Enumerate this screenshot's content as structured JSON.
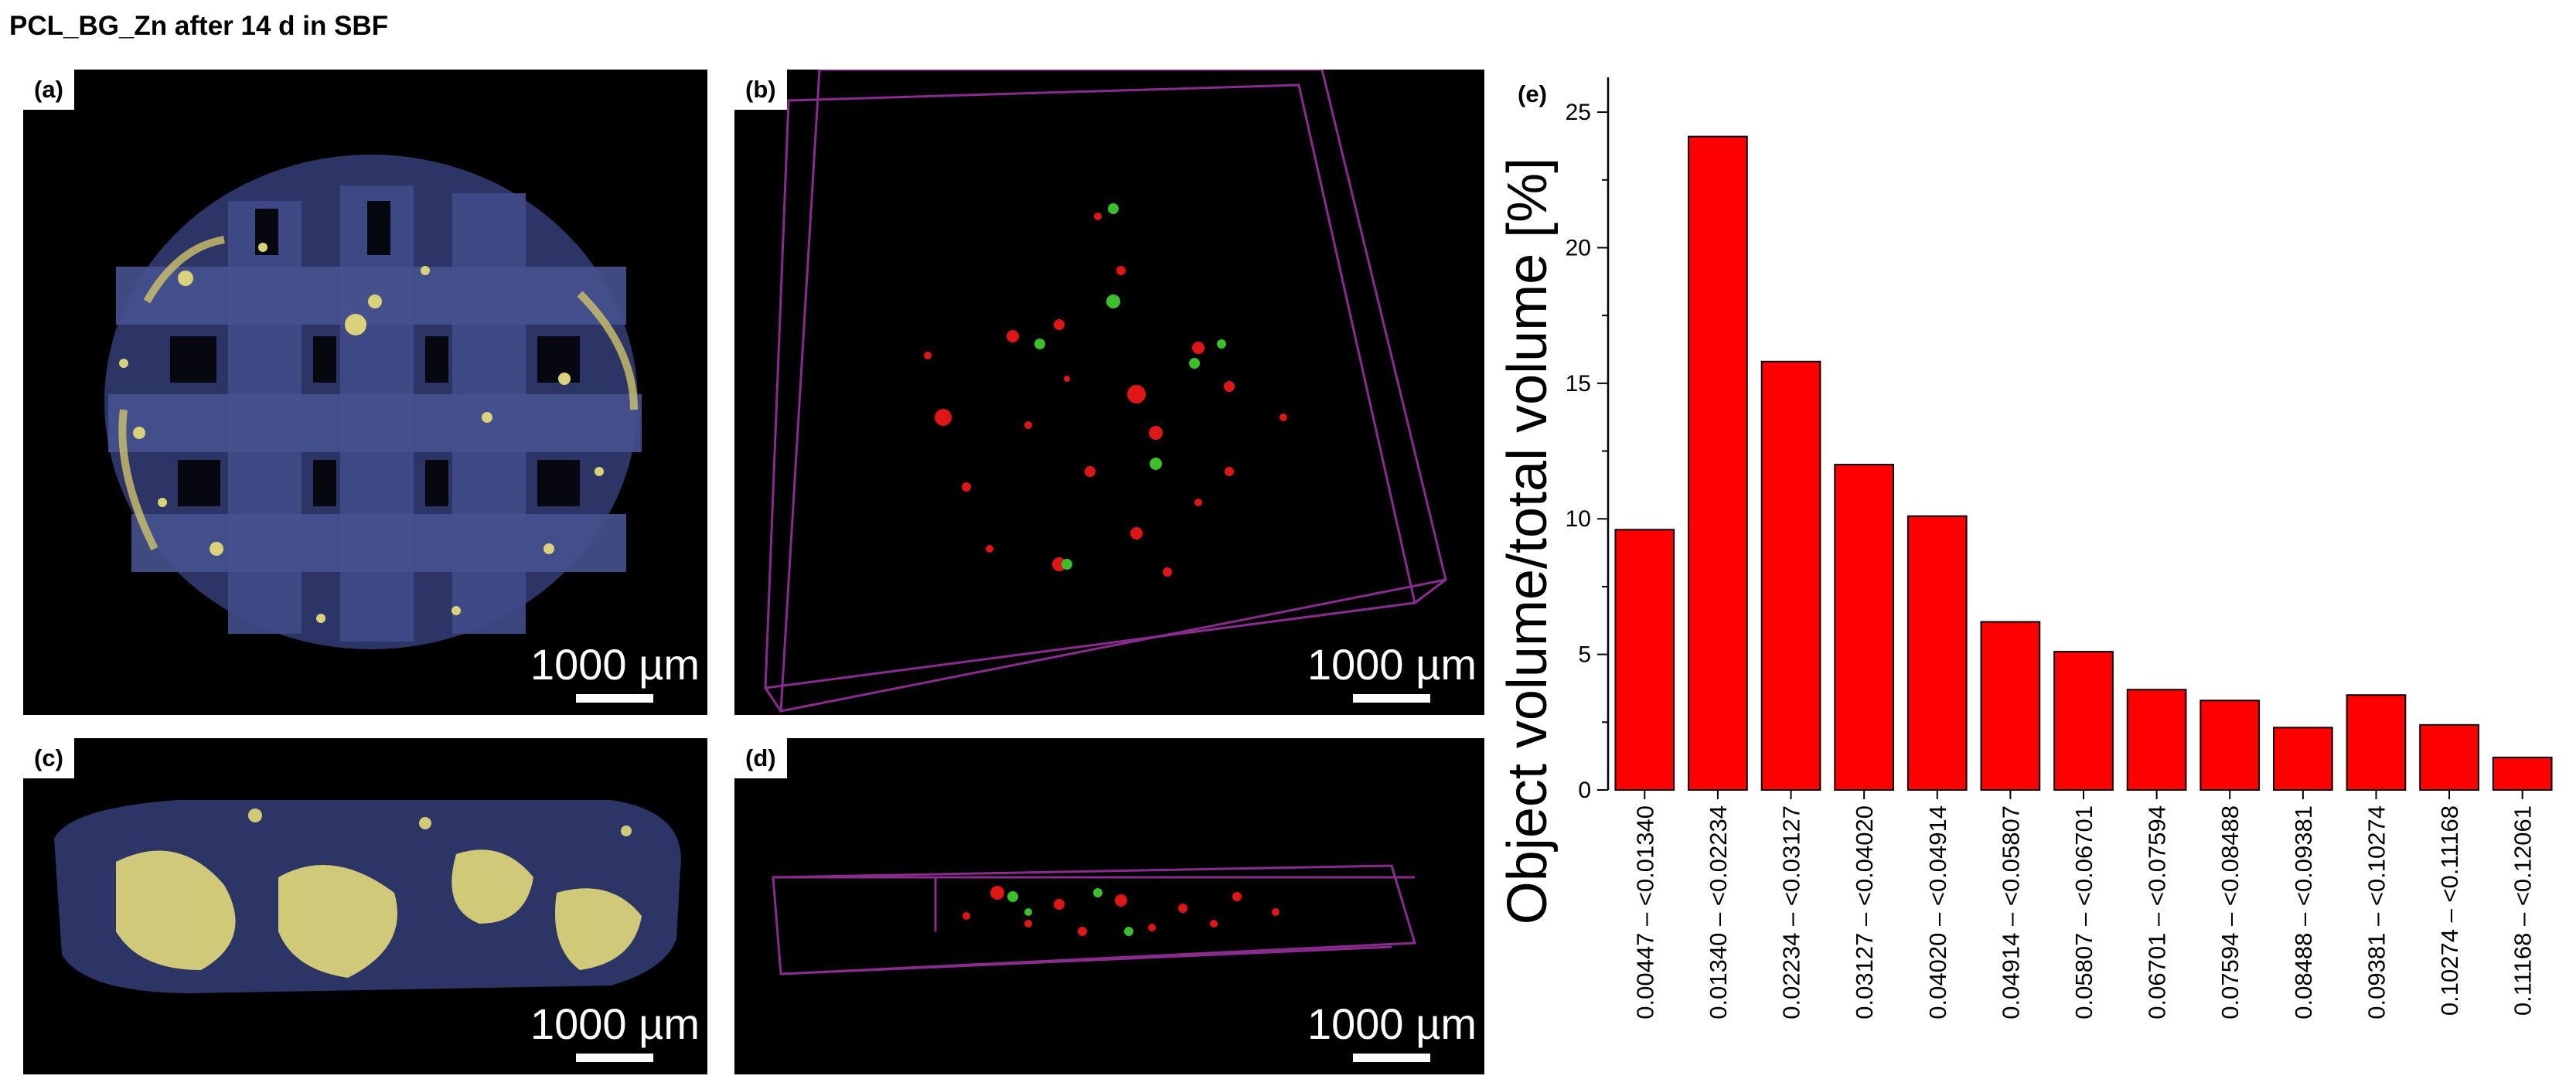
{
  "figure_title": "PCL_BG_Zn after 14 d in SBF",
  "panels": {
    "a": {
      "label": "(a)",
      "scale_text": "1000 µm"
    },
    "b": {
      "label": "(b)",
      "scale_text": "1000 µm"
    },
    "c": {
      "label": "(c)",
      "scale_text": "1000 µm"
    },
    "d": {
      "label": "(d)",
      "scale_text": "1000 µm"
    },
    "e": {
      "label": "(e)"
    }
  },
  "colors": {
    "bar_fill": "#ff0000",
    "bar_stroke": "#000000",
    "scaffold_blue": "#3a4477",
    "mineral_yellow": "#d9d27a",
    "particle_red": "#e01515",
    "particle_green": "#3bbf2a",
    "box_magenta": "#8a2b8f"
  },
  "chart_data": {
    "type": "bar",
    "title": "",
    "xlabel": "",
    "ylabel": "Object volume/total volume [%]",
    "ylim": [
      0,
      26
    ],
    "yticks": [
      0,
      5,
      10,
      15,
      20,
      25
    ],
    "categories": [
      "0.00447 – <0.01340",
      "0.01340 – <0.02234",
      "0.02234 – <0.03127",
      "0.03127 – <0.04020",
      "0.04020 – <0.04914",
      "0.04914 – <0.05807",
      "0.05807 – <0.06701",
      "0.06701 – <0.07594",
      "0.07594 – <0.08488",
      "0.08488 – <0.09381",
      "0.09381 – <0.10274",
      "0.10274 – <0.11168",
      "0.11168 – <0.12061"
    ],
    "values": [
      9.6,
      24.1,
      15.8,
      12.0,
      10.1,
      6.2,
      5.1,
      3.7,
      3.3,
      2.3,
      3.5,
      2.4,
      1.2
    ]
  }
}
